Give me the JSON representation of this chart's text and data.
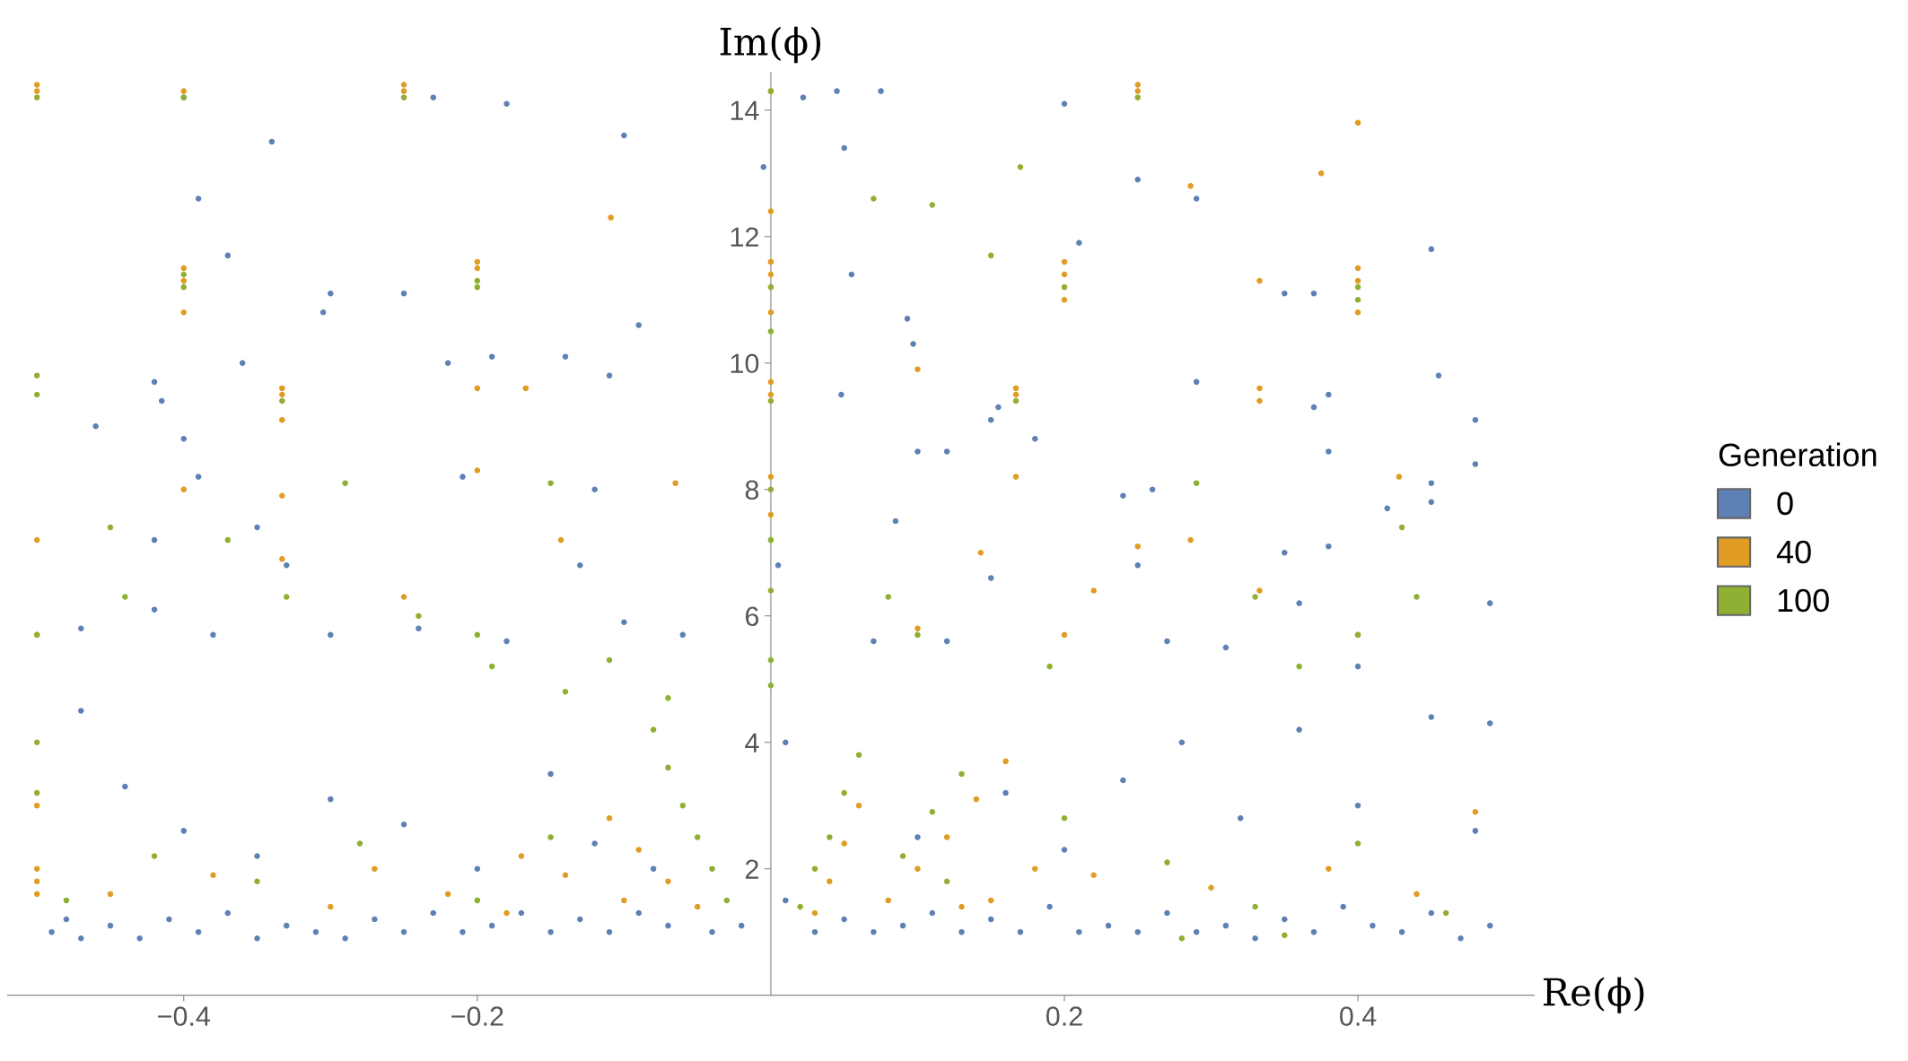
{
  "chart_data": {
    "type": "scatter",
    "xlabel": "Re(ϕ)",
    "ylabel": "Im(ϕ)",
    "legend_title": "Generation",
    "legend": "right",
    "marker": "circle",
    "xlim": [
      -0.52,
      0.52
    ],
    "ylim": [
      0,
      14.6
    ],
    "xticks": [
      {
        "value": -0.4,
        "label": "−0.4"
      },
      {
        "value": -0.2,
        "label": "−0.2"
      },
      0.2,
      0.4
    ],
    "yticks": [
      2,
      4,
      6,
      8,
      10,
      12,
      14
    ],
    "series": [
      {
        "name": "0",
        "color": "#5e81b5",
        "x": [
          -0.4,
          -0.23,
          -0.18,
          -0.34,
          -0.1,
          0.022,
          0.045,
          0.075,
          0.2,
          0.25,
          0.29,
          -0.39,
          -0.005,
          0.05,
          0.21,
          -0.37,
          0.055,
          0.37,
          0.35,
          0.45,
          -0.3,
          -0.305,
          -0.25,
          -0.09,
          0.093,
          0.097,
          -0.36,
          -0.22,
          -0.19,
          -0.14,
          -0.11,
          0.29,
          0.455,
          -0.42,
          -0.415,
          -0.46,
          -0.4,
          0.048,
          0.155,
          0.15,
          0.18,
          0.37,
          0.38,
          0.48,
          0.1,
          0.12,
          0.38,
          0.48,
          0.45,
          -0.39,
          -0.21,
          -0.12,
          0.085,
          0.24,
          0.26,
          0.38,
          0.42,
          0.45,
          -0.42,
          -0.35,
          -0.33,
          -0.13,
          0.005,
          0.35,
          0.25,
          0.15,
          0.36,
          0.49,
          -0.47,
          -0.42,
          -0.38,
          -0.3,
          -0.24,
          -0.18,
          -0.1,
          -0.06,
          0.07,
          0.12,
          0.27,
          0.31,
          0.4,
          -0.49,
          -0.48,
          -0.47,
          -0.45,
          -0.43,
          -0.41,
          -0.39,
          -0.37,
          -0.35,
          -0.33,
          -0.31,
          -0.29,
          -0.27,
          -0.25,
          -0.23,
          -0.21,
          -0.19,
          -0.17,
          -0.15,
          -0.13,
          -0.11,
          -0.09,
          -0.07,
          -0.04,
          -0.02,
          0.01,
          0.03,
          0.05,
          0.07,
          0.09,
          0.11,
          0.13,
          0.15,
          0.17,
          0.19,
          0.21,
          0.23,
          0.25,
          0.27,
          0.29,
          0.31,
          0.33,
          0.35,
          0.37,
          0.39,
          0.41,
          0.43,
          0.45,
          0.47,
          0.49,
          -0.47,
          -0.44,
          -0.4,
          -0.35,
          -0.3,
          -0.25,
          -0.2,
          -0.15,
          -0.12,
          -0.08,
          0.01,
          0.1,
          0.16,
          0.2,
          0.24,
          0.28,
          0.32,
          0.36,
          0.4,
          0.45,
          0.49,
          0.48
        ],
        "values": [
          14.2,
          14.2,
          14.1,
          13.5,
          13.6,
          14.2,
          14.3,
          14.3,
          14.1,
          12.9,
          12.6,
          12.6,
          13.1,
          13.4,
          11.9,
          11.7,
          11.4,
          11.1,
          11.1,
          11.8,
          11.1,
          10.8,
          11.1,
          10.6,
          10.7,
          10.3,
          10.0,
          10.0,
          10.1,
          10.1,
          9.8,
          9.7,
          9.8,
          9.7,
          9.4,
          9.0,
          8.8,
          9.5,
          9.3,
          9.1,
          8.8,
          9.3,
          9.5,
          9.1,
          8.6,
          8.6,
          8.6,
          8.4,
          8.1,
          8.2,
          8.2,
          8.0,
          7.5,
          7.9,
          8.0,
          7.1,
          7.7,
          7.8,
          7.2,
          7.4,
          6.8,
          6.8,
          6.8,
          7.0,
          6.8,
          6.6,
          6.2,
          6.2,
          5.8,
          6.1,
          5.7,
          5.7,
          5.8,
          5.6,
          5.9,
          5.7,
          5.6,
          5.6,
          5.6,
          5.5,
          5.2,
          1.0,
          1.2,
          0.9,
          1.1,
          0.9,
          1.2,
          1.0,
          1.3,
          0.9,
          1.1,
          1.0,
          0.9,
          1.2,
          1.0,
          1.3,
          1.0,
          1.1,
          1.3,
          1.0,
          1.2,
          1.0,
          1.3,
          1.1,
          1.0,
          1.1,
          1.5,
          1.0,
          1.2,
          1.0,
          1.1,
          1.3,
          1.0,
          1.2,
          1.0,
          1.4,
          1.0,
          1.1,
          1.0,
          1.3,
          1.0,
          1.1,
          0.9,
          1.2,
          1.0,
          1.4,
          1.1,
          1.0,
          1.3,
          0.9,
          1.1,
          4.5,
          3.3,
          2.6,
          2.2,
          3.1,
          2.7,
          2.0,
          3.5,
          2.4,
          2.0,
          4.0,
          2.5,
          3.2,
          2.3,
          3.4,
          4.0,
          2.8,
          4.2,
          3.0,
          4.4,
          4.3,
          2.6
        ]
      },
      {
        "name": "40",
        "color": "#e19c24",
        "x": [
          -0.5,
          -0.5,
          -0.5,
          -0.5,
          -0.5,
          -0.5,
          -0.5,
          -0.5,
          -0.4,
          -0.4,
          -0.4,
          -0.4,
          -0.4,
          -0.333,
          -0.333,
          -0.333,
          -0.333,
          -0.333,
          -0.25,
          -0.25,
          -0.25,
          -0.2,
          -0.2,
          -0.2,
          -0.2,
          -0.167,
          -0.109,
          -0.143,
          -0.065,
          0,
          0,
          0,
          0,
          0,
          0,
          0,
          0,
          0,
          0.2,
          0.2,
          0.2,
          0.2,
          0.25,
          0.25,
          0.25,
          0.333,
          0.333,
          0.333,
          0.333,
          0.4,
          0.4,
          0.4,
          0.4,
          0.4,
          0.286,
          0.286,
          0.375,
          0.1,
          0.1,
          0.167,
          0.167,
          0.167,
          0.428,
          0.143,
          0.22,
          0.03,
          0.04,
          0.05,
          0.06,
          0.08,
          0.1,
          0.12,
          0.14,
          0.16,
          0.13,
          0.18,
          -0.05,
          -0.07,
          -0.09,
          -0.11,
          -0.1,
          -0.14,
          -0.17,
          -0.45,
          -0.38,
          -0.3,
          -0.22,
          -0.18,
          0.15,
          0.22,
          0.3,
          0.38,
          0.44,
          0.48,
          -0.27
        ],
        "values": [
          14.3,
          14.4,
          7.2,
          5.7,
          3.0,
          2.0,
          1.8,
          1.6,
          14.3,
          11.5,
          11.3,
          10.8,
          8.0,
          9.6,
          9.5,
          9.1,
          7.9,
          6.9,
          14.3,
          14.4,
          6.3,
          11.6,
          11.5,
          9.6,
          8.3,
          9.6,
          12.3,
          7.2,
          8.1,
          14.3,
          12.4,
          11.6,
          11.4,
          10.8,
          9.7,
          9.5,
          8.2,
          7.6,
          11.6,
          11.4,
          11.0,
          5.7,
          14.4,
          14.3,
          7.1,
          11.3,
          9.6,
          9.4,
          6.4,
          13.8,
          11.5,
          11.3,
          10.8,
          5.7,
          12.8,
          7.2,
          13.0,
          9.9,
          5.8,
          9.6,
          9.5,
          8.2,
          8.2,
          7.0,
          6.4,
          1.3,
          1.8,
          2.4,
          3.0,
          1.5,
          2.0,
          2.5,
          3.1,
          3.7,
          1.4,
          2.0,
          1.4,
          1.8,
          2.3,
          2.8,
          1.5,
          1.9,
          2.2,
          1.6,
          1.9,
          1.4,
          1.6,
          1.3,
          1.5,
          1.9,
          1.7,
          2.0,
          1.6,
          2.9,
          2.0
        ]
      },
      {
        "name": "100",
        "color": "#8fb032",
        "x": [
          -0.5,
          -0.5,
          -0.5,
          -0.5,
          -0.5,
          -0.5,
          -0.4,
          -0.4,
          -0.4,
          -0.333,
          -0.25,
          -0.2,
          -0.2,
          0,
          0,
          0,
          0,
          0,
          0,
          0,
          0,
          0,
          0.2,
          0.25,
          0.4,
          0.4,
          0.167,
          0.17,
          0.15,
          0.11,
          0.07,
          -0.45,
          -0.44,
          -0.37,
          -0.33,
          -0.29,
          -0.24,
          -0.2,
          -0.19,
          -0.15,
          -0.14,
          -0.11,
          -0.07,
          0.08,
          0.1,
          0.19,
          0.29,
          0.33,
          0.36,
          0.4,
          0.43,
          0.44,
          -0.03,
          -0.04,
          -0.05,
          -0.06,
          -0.07,
          -0.08,
          0.02,
          0.03,
          0.04,
          0.05,
          0.06,
          0.09,
          0.11,
          0.13,
          -0.48,
          -0.42,
          -0.35,
          -0.28,
          -0.2,
          -0.15,
          0.12,
          0.2,
          0.27,
          0.33,
          0.4,
          0.46,
          0.28,
          0.35
        ],
        "values": [
          14.2,
          9.8,
          9.5,
          5.7,
          4.0,
          3.2,
          14.2,
          11.4,
          11.2,
          9.4,
          14.2,
          11.3,
          11.2,
          14.3,
          11.2,
          10.5,
          9.4,
          8.0,
          7.2,
          6.4,
          5.3,
          4.9,
          11.2,
          14.2,
          11.0,
          11.2,
          9.4,
          13.1,
          11.7,
          12.5,
          12.6,
          7.4,
          6.3,
          7.2,
          6.3,
          8.1,
          6.0,
          5.7,
          5.2,
          8.1,
          4.8,
          5.3,
          4.7,
          6.3,
          5.7,
          5.2,
          8.1,
          6.3,
          5.2,
          5.7,
          7.4,
          6.3,
          1.5,
          2.0,
          2.5,
          3.0,
          3.6,
          4.2,
          1.4,
          2.0,
          2.5,
          3.2,
          3.8,
          2.2,
          2.9,
          3.5,
          1.5,
          2.2,
          1.8,
          2.4,
          1.5,
          2.5,
          1.8,
          2.8,
          2.1,
          1.4,
          2.4,
          1.3,
          0.9,
          0.95
        ]
      }
    ]
  }
}
